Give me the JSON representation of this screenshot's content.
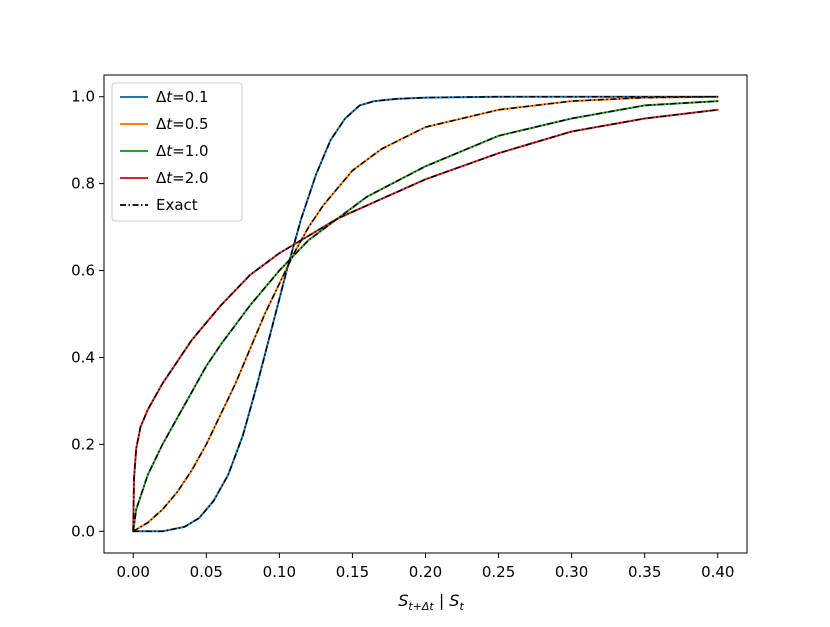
{
  "chart_data": {
    "type": "line",
    "title": "",
    "xlabel_parts": {
      "base": "S",
      "sub": "t+Δt",
      "sep": " | ",
      "base2": "S",
      "sub2": "t"
    },
    "ylabel": "",
    "xlim": [
      -0.02,
      0.42
    ],
    "ylim": [
      -0.05,
      1.05
    ],
    "xticks": [
      0.0,
      0.05,
      0.1,
      0.15,
      0.2,
      0.25,
      0.3,
      0.35,
      0.4
    ],
    "xtick_labels": [
      "0.00",
      "0.05",
      "0.10",
      "0.15",
      "0.20",
      "0.25",
      "0.30",
      "0.35",
      "0.40"
    ],
    "yticks": [
      0.0,
      0.2,
      0.4,
      0.6,
      0.8,
      1.0
    ],
    "ytick_labels": [
      "0.0",
      "0.2",
      "0.4",
      "0.6",
      "0.8",
      "1.0"
    ],
    "grid": false,
    "legend_position": "top-left",
    "series": [
      {
        "name": "Δt=0.1",
        "legend_parts": {
          "pre": "Δ",
          "var": "t",
          "post": "=0.1"
        },
        "color": "#1f77b4",
        "style": "solid",
        "x": [
          0.0,
          0.02,
          0.035,
          0.045,
          0.055,
          0.065,
          0.075,
          0.085,
          0.095,
          0.105,
          0.115,
          0.125,
          0.135,
          0.145,
          0.155,
          0.165,
          0.18,
          0.2,
          0.25,
          0.3,
          0.35,
          0.4
        ],
        "y": [
          0.0,
          0.0,
          0.01,
          0.03,
          0.07,
          0.13,
          0.22,
          0.34,
          0.47,
          0.6,
          0.72,
          0.82,
          0.9,
          0.95,
          0.98,
          0.99,
          0.995,
          0.998,
          1.0,
          1.0,
          1.0,
          1.0
        ]
      },
      {
        "name": "Δt=0.5",
        "legend_parts": {
          "pre": "Δ",
          "var": "t",
          "post": "=0.5"
        },
        "color": "#ff7f0e",
        "style": "solid",
        "x": [
          0.0,
          0.01,
          0.02,
          0.03,
          0.04,
          0.05,
          0.06,
          0.07,
          0.08,
          0.09,
          0.1,
          0.11,
          0.12,
          0.13,
          0.14,
          0.15,
          0.17,
          0.2,
          0.25,
          0.3,
          0.35,
          0.4
        ],
        "y": [
          0.0,
          0.02,
          0.05,
          0.09,
          0.14,
          0.2,
          0.27,
          0.34,
          0.42,
          0.5,
          0.57,
          0.64,
          0.7,
          0.75,
          0.79,
          0.83,
          0.88,
          0.93,
          0.97,
          0.99,
          0.998,
          1.0
        ]
      },
      {
        "name": "Δt=1.0",
        "legend_parts": {
          "pre": "Δ",
          "var": "t",
          "post": "=1.0"
        },
        "color": "#2ca02c",
        "style": "solid",
        "x": [
          0.0,
          0.002,
          0.01,
          0.02,
          0.03,
          0.04,
          0.05,
          0.06,
          0.08,
          0.1,
          0.12,
          0.14,
          0.16,
          0.2,
          0.25,
          0.3,
          0.35,
          0.4
        ],
        "y": [
          0.0,
          0.05,
          0.13,
          0.2,
          0.26,
          0.32,
          0.38,
          0.43,
          0.52,
          0.6,
          0.67,
          0.72,
          0.77,
          0.84,
          0.91,
          0.95,
          0.98,
          0.99
        ]
      },
      {
        "name": "Δt=2.0",
        "legend_parts": {
          "pre": "Δ",
          "var": "t",
          "post": "=2.0"
        },
        "color": "#d62728",
        "style": "solid",
        "x": [
          0.0,
          0.0005,
          0.002,
          0.005,
          0.01,
          0.02,
          0.03,
          0.04,
          0.05,
          0.06,
          0.08,
          0.1,
          0.12,
          0.14,
          0.16,
          0.2,
          0.25,
          0.3,
          0.35,
          0.4
        ],
        "y": [
          0.0,
          0.12,
          0.19,
          0.24,
          0.28,
          0.34,
          0.39,
          0.44,
          0.48,
          0.52,
          0.59,
          0.64,
          0.68,
          0.72,
          0.75,
          0.81,
          0.87,
          0.92,
          0.95,
          0.97
        ]
      },
      {
        "name": "Exact",
        "legend_parts": {
          "pre": "",
          "var": "",
          "post": "Exact"
        },
        "color": "#000000",
        "style": "dashdot",
        "groups": [
          {
            "x": [
              0.0,
              0.02,
              0.035,
              0.045,
              0.055,
              0.065,
              0.075,
              0.085,
              0.095,
              0.105,
              0.115,
              0.125,
              0.135,
              0.145,
              0.155,
              0.165,
              0.18,
              0.2,
              0.25,
              0.3,
              0.35,
              0.4
            ],
            "y": [
              0.0,
              0.0,
              0.01,
              0.03,
              0.07,
              0.13,
              0.22,
              0.34,
              0.47,
              0.6,
              0.72,
              0.82,
              0.9,
              0.95,
              0.98,
              0.99,
              0.995,
              0.998,
              1.0,
              1.0,
              1.0,
              1.0
            ]
          },
          {
            "x": [
              0.0,
              0.01,
              0.02,
              0.03,
              0.04,
              0.05,
              0.06,
              0.07,
              0.08,
              0.09,
              0.1,
              0.11,
              0.12,
              0.13,
              0.14,
              0.15,
              0.17,
              0.2,
              0.25,
              0.3,
              0.35,
              0.4
            ],
            "y": [
              0.0,
              0.02,
              0.05,
              0.09,
              0.14,
              0.2,
              0.27,
              0.34,
              0.42,
              0.5,
              0.57,
              0.64,
              0.7,
              0.75,
              0.79,
              0.83,
              0.88,
              0.93,
              0.97,
              0.99,
              0.998,
              1.0
            ]
          },
          {
            "x": [
              0.0,
              0.002,
              0.01,
              0.02,
              0.03,
              0.04,
              0.05,
              0.06,
              0.08,
              0.1,
              0.12,
              0.14,
              0.16,
              0.2,
              0.25,
              0.3,
              0.35,
              0.4
            ],
            "y": [
              0.0,
              0.05,
              0.13,
              0.2,
              0.26,
              0.32,
              0.38,
              0.43,
              0.52,
              0.6,
              0.67,
              0.72,
              0.77,
              0.84,
              0.91,
              0.95,
              0.98,
              0.99
            ]
          },
          {
            "x": [
              0.0,
              0.0005,
              0.002,
              0.005,
              0.01,
              0.02,
              0.03,
              0.04,
              0.05,
              0.06,
              0.08,
              0.1,
              0.12,
              0.14,
              0.16,
              0.2,
              0.25,
              0.3,
              0.35,
              0.4
            ],
            "y": [
              0.0,
              0.12,
              0.19,
              0.24,
              0.28,
              0.34,
              0.39,
              0.44,
              0.48,
              0.52,
              0.59,
              0.64,
              0.68,
              0.72,
              0.75,
              0.81,
              0.87,
              0.92,
              0.95,
              0.97
            ]
          }
        ]
      }
    ]
  }
}
